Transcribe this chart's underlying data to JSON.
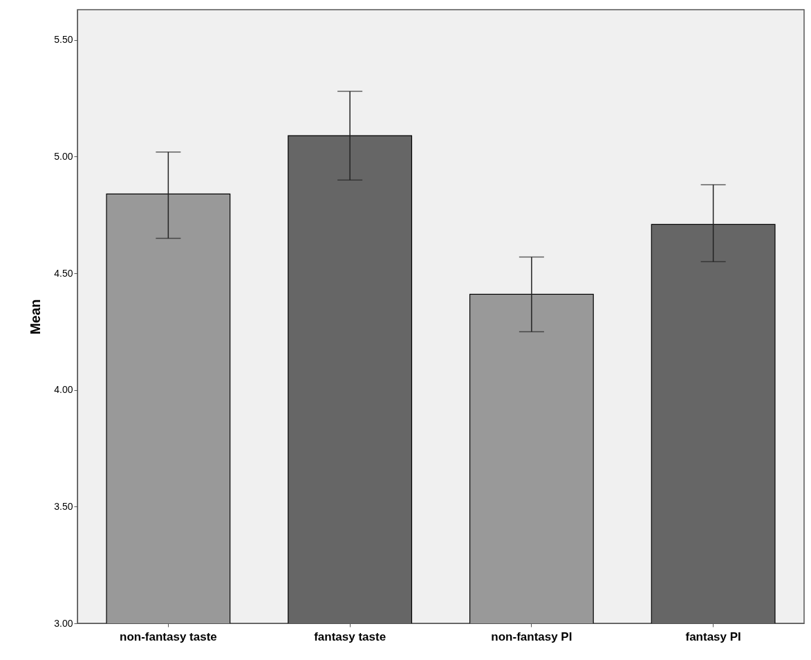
{
  "chart_data": {
    "type": "bar",
    "ylabel": "Mean",
    "categories": [
      "non-fantasy taste",
      "fantasy taste",
      "non-fantasy PI",
      "fantasy PI"
    ],
    "values": [
      4.84,
      5.09,
      4.41,
      4.71
    ],
    "colors": [
      "#999999",
      "#666666",
      "#999999",
      "#666666"
    ],
    "errors": [
      [
        4.65,
        5.02
      ],
      [
        4.9,
        5.28
      ],
      [
        4.25,
        4.57
      ],
      [
        4.55,
        4.88
      ]
    ],
    "ylim": [
      3.0,
      5.63
    ],
    "yticks": [
      {
        "value": 3.0,
        "label": "3.00"
      },
      {
        "value": 3.5,
        "label": "3.50"
      },
      {
        "value": 4.0,
        "label": "4.00"
      },
      {
        "value": 4.5,
        "label": "4.50"
      },
      {
        "value": 5.0,
        "label": "5.00"
      },
      {
        "value": 5.5,
        "label": "5.50"
      }
    ],
    "grid": false
  }
}
